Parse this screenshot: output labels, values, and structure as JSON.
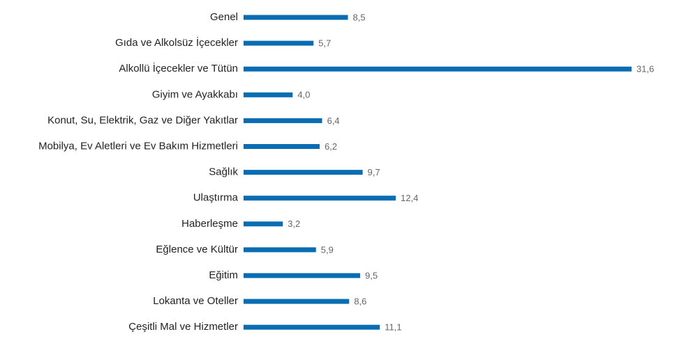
{
  "chart_data": {
    "type": "bar",
    "orientation": "horizontal",
    "categories": [
      "Genel",
      "Gıda ve Alkolsüz İçecekler",
      "Alkollü İçecekler ve Tütün",
      "Giyim ve Ayakkabı",
      "Konut, Su, Elektrik, Gaz ve Diğer Yakıtlar",
      "Mobilya, Ev Aletleri ve Ev Bakım Hizmetleri",
      "Sağlık",
      "Ulaştırma",
      "Haberleşme",
      "Eğlence ve Kültür",
      "Eğitim",
      "Lokanta ve Oteller",
      "Çeşitli Mal ve Hizmetler"
    ],
    "values": [
      8.5,
      5.7,
      31.6,
      4.0,
      6.4,
      6.2,
      9.7,
      12.4,
      3.2,
      5.9,
      9.5,
      8.6,
      11.1
    ],
    "value_labels": [
      "8,5",
      "5,7",
      "31,6",
      "4,0",
      "6,4",
      "6,2",
      "9,7",
      "12,4",
      "3,2",
      "5,9",
      "9,5",
      "8,6",
      "11,1"
    ],
    "color": "#0a6db3"
  }
}
